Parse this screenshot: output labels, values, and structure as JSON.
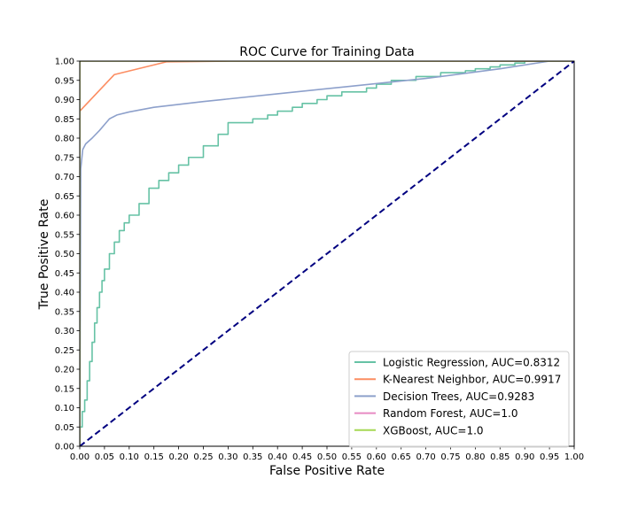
{
  "chart_data": {
    "type": "line",
    "title": "ROC Curve for Training Data",
    "xlabel": "False Positive Rate",
    "ylabel": "True Positive Rate",
    "xlim": [
      0.0,
      1.0
    ],
    "ylim": [
      0.0,
      1.0
    ],
    "xticks": [
      "0.00",
      "0.05",
      "0.10",
      "0.15",
      "0.20",
      "0.25",
      "0.30",
      "0.35",
      "0.40",
      "0.45",
      "0.50",
      "0.55",
      "0.60",
      "0.65",
      "0.70",
      "0.75",
      "0.80",
      "0.85",
      "0.90",
      "0.95",
      "1.00"
    ],
    "yticks": [
      "0.00",
      "0.05",
      "0.10",
      "0.15",
      "0.20",
      "0.25",
      "0.30",
      "0.35",
      "0.40",
      "0.45",
      "0.50",
      "0.55",
      "0.60",
      "0.65",
      "0.70",
      "0.75",
      "0.80",
      "0.85",
      "0.90",
      "0.95",
      "1.00"
    ],
    "grid": false,
    "legend_position": "lower-right",
    "series": [
      {
        "name": "Logistic Regression, AUC=0.8312",
        "color": "#66c2a5",
        "step": true,
        "x": [
          0.0,
          0.0,
          0.005,
          0.01,
          0.015,
          0.02,
          0.025,
          0.03,
          0.035,
          0.04,
          0.045,
          0.05,
          0.06,
          0.07,
          0.08,
          0.09,
          0.1,
          0.12,
          0.14,
          0.16,
          0.18,
          0.2,
          0.22,
          0.25,
          0.28,
          0.3,
          0.32,
          0.35,
          0.38,
          0.4,
          0.43,
          0.45,
          0.48,
          0.5,
          0.53,
          0.55,
          0.58,
          0.6,
          0.63,
          0.65,
          0.68,
          0.7,
          0.73,
          0.75,
          0.78,
          0.8,
          0.83,
          0.85,
          0.88,
          0.9,
          0.93,
          0.95,
          0.97,
          1.0
        ],
        "y": [
          0.0,
          0.05,
          0.09,
          0.12,
          0.17,
          0.22,
          0.27,
          0.32,
          0.36,
          0.4,
          0.43,
          0.46,
          0.5,
          0.53,
          0.56,
          0.58,
          0.6,
          0.63,
          0.67,
          0.69,
          0.71,
          0.73,
          0.75,
          0.78,
          0.81,
          0.84,
          0.84,
          0.85,
          0.86,
          0.87,
          0.88,
          0.89,
          0.9,
          0.91,
          0.92,
          0.92,
          0.93,
          0.94,
          0.95,
          0.95,
          0.96,
          0.96,
          0.97,
          0.97,
          0.975,
          0.98,
          0.985,
          0.99,
          0.995,
          1.0,
          1.0,
          1.0,
          1.0,
          1.0
        ]
      },
      {
        "name": "K-Nearest Neighbor, AUC=0.9917",
        "color": "#fc8d62",
        "step": false,
        "x": [
          0.0,
          0.07,
          0.175,
          0.3,
          1.0
        ],
        "y": [
          0.87,
          0.965,
          0.998,
          1.0,
          1.0
        ]
      },
      {
        "name": "Decision Trees, AUC=0.9283",
        "color": "#8da0cb",
        "step": false,
        "x": [
          0.0,
          0.002,
          0.006,
          0.012,
          0.025,
          0.04,
          0.05,
          0.06,
          0.075,
          0.1,
          0.15,
          0.25,
          0.4,
          0.55,
          0.7,
          0.85,
          0.95,
          1.0
        ],
        "y": [
          0.0,
          0.72,
          0.77,
          0.785,
          0.8,
          0.82,
          0.835,
          0.85,
          0.86,
          0.868,
          0.88,
          0.895,
          0.915,
          0.935,
          0.955,
          0.98,
          1.0,
          1.0
        ]
      },
      {
        "name": "Random Forest, AUC=1.0",
        "color": "#e78ac3",
        "step": false,
        "x": [
          0.0,
          0.0,
          1.0
        ],
        "y": [
          0.0,
          1.0,
          1.0
        ]
      },
      {
        "name": "XGBoost, AUC=1.0",
        "color": "#a6d854",
        "step": false,
        "x": [
          0.0,
          0.0,
          1.0
        ],
        "y": [
          0.0,
          1.0,
          1.0
        ]
      }
    ],
    "baseline": {
      "color": "#000080",
      "dashed": true,
      "x": [
        0.0,
        1.0
      ],
      "y": [
        0.0,
        1.0
      ]
    }
  }
}
